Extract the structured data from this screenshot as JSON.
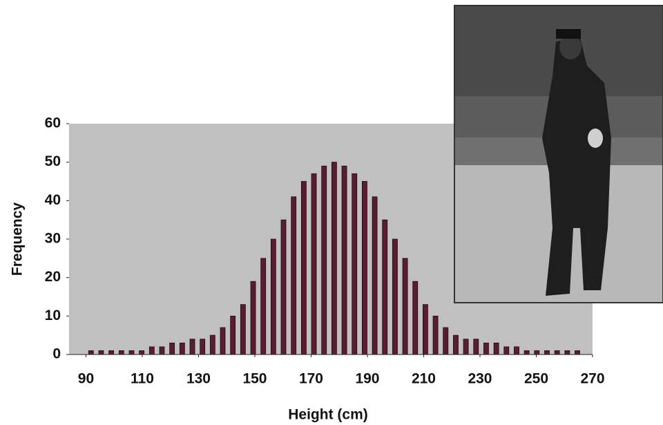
{
  "chart_data": {
    "type": "bar",
    "xlabel": "Height (cm)",
    "ylabel": "Frequency",
    "x": [
      91.8,
      95.4,
      99,
      102.6,
      106.2,
      109.8,
      113.4,
      117,
      120.6,
      124.2,
      127.8,
      131.4,
      135,
      138.6,
      142.2,
      145.8,
      149.4,
      153,
      156.6,
      160.2,
      163.8,
      167.4,
      171,
      174.6,
      178.2,
      181.8,
      185.4,
      189,
      192.6,
      196.2,
      199.8,
      203.4,
      207,
      210.6,
      214.2,
      217.8,
      221.4,
      225,
      228.6,
      232.2,
      235.8,
      239.4,
      243,
      246.6,
      250.2,
      253.8,
      257.4,
      261,
      264.6
    ],
    "values": [
      1,
      1,
      1,
      1,
      1,
      1,
      2,
      2,
      3,
      3,
      4,
      4,
      5,
      7,
      10,
      13,
      19,
      25,
      30,
      35,
      41,
      45,
      47,
      49,
      50,
      49,
      47,
      45,
      41,
      35,
      30,
      25,
      19,
      13,
      10,
      7,
      5,
      4,
      4,
      3,
      3,
      2,
      2,
      1,
      1,
      1,
      1,
      1,
      1
    ],
    "color": "#5e1a32",
    "xlim": [
      84,
      270
    ],
    "xticks": [
      90,
      110,
      130,
      150,
      170,
      190,
      210,
      230,
      250,
      270
    ],
    "ylim": [
      0,
      60
    ],
    "yticks": [
      0,
      10,
      20,
      30,
      40,
      50,
      60
    ]
  }
}
